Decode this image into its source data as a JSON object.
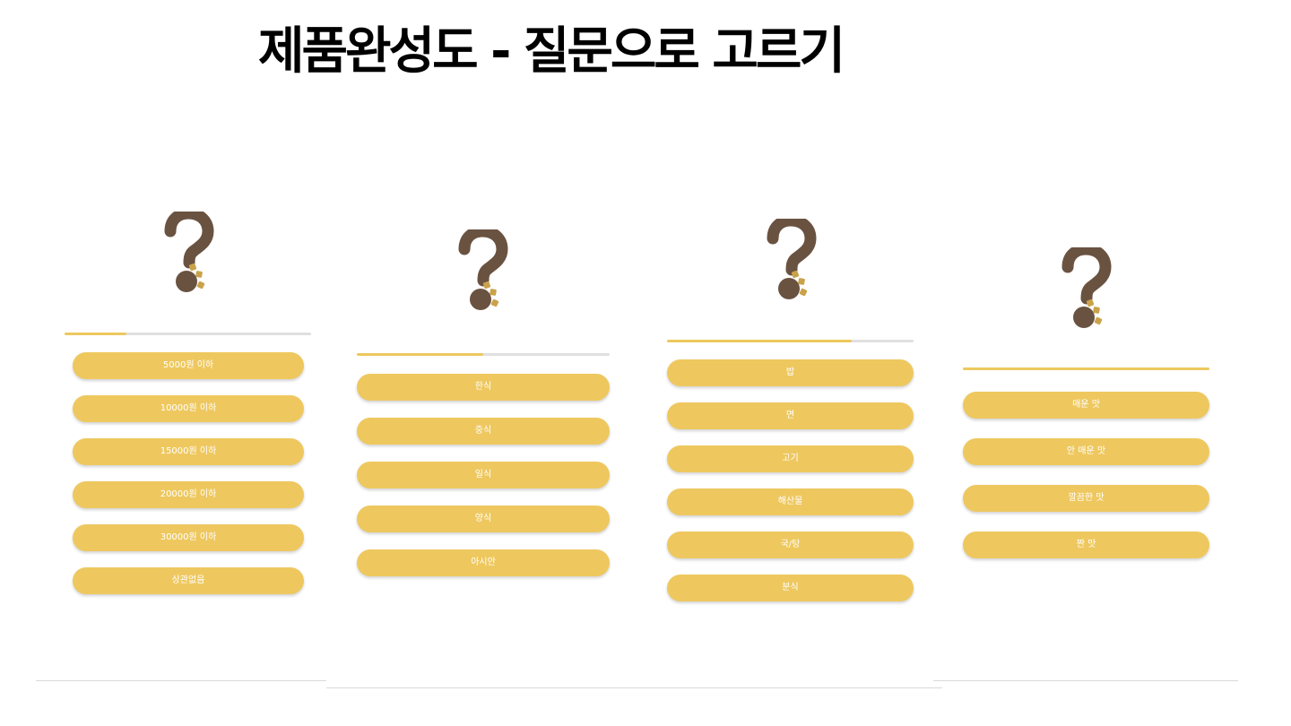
{
  "slide": {
    "title": "제품완성도 - 질문으로 고르기"
  },
  "colors": {
    "accent": "#EEC85F",
    "track": "#E0E0E0",
    "button_text": "#FFFFFF",
    "question_mark": "#6A5241",
    "question_mark_detail": "#C9A24A",
    "divider": "#D9D9D9"
  },
  "panels": [
    {
      "icon": "question-mark-icon",
      "progress": 0.25,
      "options": [
        "5000원 이하",
        "10000원 이하",
        "15000원 이하",
        "20000원 이하",
        "30000원 이하",
        "상관없음"
      ]
    },
    {
      "icon": "question-mark-icon",
      "progress": 0.5,
      "options": [
        "한식",
        "중식",
        "일식",
        "양식",
        "아시안"
      ]
    },
    {
      "icon": "question-mark-icon",
      "progress": 0.75,
      "options": [
        "밥",
        "면",
        "고기",
        "해산물",
        "국/탕",
        "분식"
      ]
    },
    {
      "icon": "question-mark-icon",
      "progress": 1.0,
      "options": [
        "매운 맛",
        "안 매운 맛",
        "깔끔한 맛",
        "짠 맛"
      ]
    }
  ]
}
